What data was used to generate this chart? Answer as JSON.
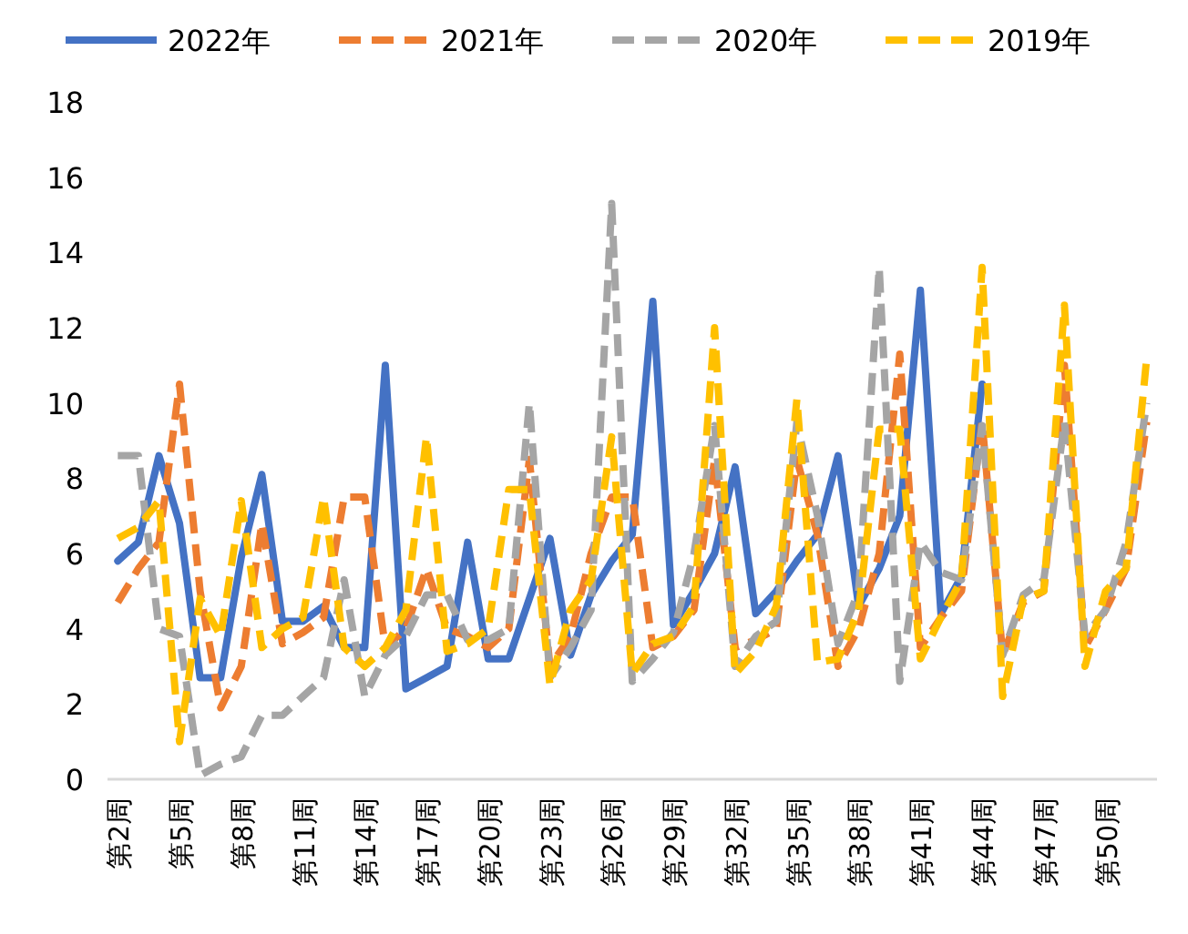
{
  "chart_data": {
    "type": "line",
    "categories": [
      "第2周",
      null,
      null,
      "第5周",
      null,
      null,
      "第8周",
      null,
      null,
      "第11周",
      null,
      null,
      "第14周",
      null,
      null,
      "第17周",
      null,
      null,
      "第20周",
      null,
      null,
      "第23周",
      null,
      null,
      "第26周",
      null,
      null,
      "第29周",
      null,
      null,
      "第32周",
      null,
      null,
      "第35周",
      null,
      null,
      "第38周",
      null,
      null,
      "第41周",
      null,
      null,
      "第44周",
      null,
      null,
      "第47周",
      null,
      null,
      "第50周",
      null,
      null
    ],
    "ylim": [
      0,
      18
    ],
    "yticks": [
      0,
      2,
      4,
      6,
      8,
      10,
      12,
      14,
      16,
      18
    ],
    "grid": false,
    "legend": "top",
    "marker": "none",
    "series": [
      {
        "name": "2022年",
        "color": "#4472c4",
        "line_style": "solid",
        "values": [
          5.8,
          6.3,
          8.6,
          6.8,
          2.7,
          2.7,
          5.9,
          8.1,
          4.2,
          4.2,
          4.6,
          3.5,
          3.5,
          11.0,
          2.4,
          2.7,
          3.0,
          6.3,
          3.2,
          3.2,
          4.8,
          6.4,
          3.3,
          4.9,
          5.8,
          6.5,
          12.7,
          4.1,
          5.0,
          6.0,
          8.3,
          4.4,
          5.0,
          5.8,
          6.5,
          8.6,
          4.6,
          5.6,
          7.0,
          13.0,
          4.4,
          5.4,
          10.5,
          null,
          null,
          null,
          null,
          null,
          null,
          null,
          null
        ]
      },
      {
        "name": "2021年",
        "color": "#ed7d31",
        "line_style": "dashed",
        "values": [
          4.7,
          5.6,
          6.3,
          10.5,
          5.0,
          1.9,
          3.0,
          6.8,
          3.6,
          3.9,
          4.3,
          7.5,
          7.5,
          3.5,
          4.0,
          5.6,
          4.0,
          3.8,
          3.5,
          4.0,
          8.5,
          3.0,
          3.8,
          6.0,
          7.5,
          7.5,
          3.5,
          3.8,
          4.5,
          8.5,
          3.5,
          3.7,
          4.0,
          8.5,
          6.5,
          3.0,
          4.0,
          6.0,
          11.3,
          3.5,
          4.3,
          5.0,
          9.5,
          3.3,
          4.7,
          5.0,
          11.0,
          3.5,
          4.5,
          5.6,
          9.5
        ]
      },
      {
        "name": "2020年",
        "color": "#a5a5a5",
        "line_style": "dashed",
        "values": [
          8.6,
          8.6,
          4.0,
          3.8,
          0.1,
          0.4,
          0.6,
          1.7,
          1.7,
          2.2,
          2.7,
          5.3,
          2.2,
          3.3,
          3.8,
          4.9,
          4.9,
          3.7,
          3.7,
          4.0,
          10.0,
          2.7,
          3.5,
          4.5,
          15.3,
          2.6,
          3.2,
          3.9,
          6.0,
          9.4,
          3.0,
          3.8,
          4.2,
          9.5,
          7.0,
          3.6,
          5.0,
          13.6,
          2.6,
          6.3,
          5.5,
          5.3,
          9.4,
          3.3,
          4.9,
          5.3,
          9.5,
          3.8,
          4.5,
          6.3,
          10.0
        ]
      },
      {
        "name": "2019年",
        "color": "#ffc000",
        "line_style": "dashed",
        "values": [
          6.4,
          6.7,
          7.4,
          1.0,
          4.8,
          3.8,
          7.4,
          3.5,
          4.0,
          4.3,
          7.5,
          3.5,
          3.0,
          3.5,
          4.5,
          9.1,
          3.4,
          3.6,
          4.0,
          7.7,
          7.7,
          2.5,
          4.5,
          5.3,
          9.1,
          2.8,
          3.6,
          3.8,
          4.6,
          12.0,
          2.8,
          3.4,
          4.6,
          10.1,
          3.1,
          3.2,
          4.5,
          9.3,
          9.3,
          3.2,
          4.3,
          5.3,
          13.6,
          2.2,
          4.8,
          5.0,
          12.6,
          3.0,
          5.0,
          5.6,
          11.2
        ]
      }
    ]
  }
}
